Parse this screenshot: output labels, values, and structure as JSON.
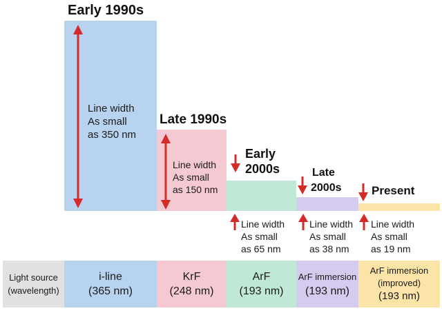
{
  "eras": [
    {
      "name": "Early 1990s",
      "line_width": [
        "Line width",
        "As small",
        "as 350 nm"
      ],
      "color": "#b7d3ef"
    },
    {
      "name": "Late 1990s",
      "line_width": [
        "Line width",
        "As small",
        "as 150 nm"
      ],
      "color": "#f4c9d2"
    },
    {
      "name_lines": [
        "Early",
        "2000s"
      ],
      "line_width": [
        "Line width",
        "As small",
        "as 65 nm"
      ],
      "color": "#bfe8d6"
    },
    {
      "name_lines": [
        "Late",
        "2000s"
      ],
      "line_width": [
        "Line width",
        "As small",
        "as 38 nm"
      ],
      "color": "#d5cbee"
    },
    {
      "name": "Present",
      "line_width": [
        "Line width",
        "As small",
        "as 19 nm"
      ],
      "color": "#fce3a8"
    }
  ],
  "light_source": {
    "header": [
      "Light source",
      "(wavelength)"
    ],
    "header_color": "#e1e1e1",
    "items": [
      {
        "name": "i-line",
        "wavelength": "(365 nm)",
        "color": "#b7d3ef"
      },
      {
        "name": "KrF",
        "wavelength": "(248 nm)",
        "color": "#f4c9d2"
      },
      {
        "name": "ArF",
        "wavelength": "(193 nm)",
        "color": "#bfe8d6"
      },
      {
        "name": "ArF immersion",
        "wavelength": "(193 nm)",
        "color": "#d5cbee"
      },
      {
        "name_lines": [
          "ArF immersion",
          "(improved)"
        ],
        "wavelength": "(193 nm)",
        "color": "#fce3a8"
      }
    ]
  },
  "arrow_color": "#d42a2a"
}
